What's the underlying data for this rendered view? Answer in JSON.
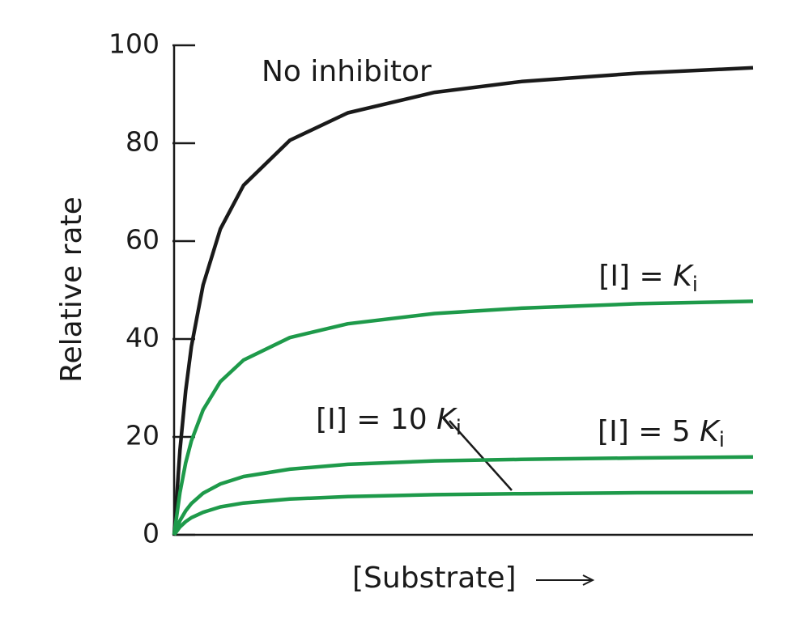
{
  "chart_data": {
    "type": "line",
    "ylabel": "Relative rate",
    "xlabel": "[Substrate]",
    "x": [
      0,
      1,
      2,
      3,
      5,
      8,
      12,
      20,
      30,
      45,
      60,
      80,
      100
    ],
    "xlim": [
      0,
      100
    ],
    "ylim": [
      0,
      100
    ],
    "yticks": [
      0,
      20,
      40,
      60,
      80,
      100
    ],
    "series": [
      {
        "color": "#1a1a1a",
        "label": {
          "prefix": "No inhibitor"
        },
        "values": [
          0,
          17.2,
          29.4,
          38.5,
          51.0,
          62.5,
          71.4,
          80.6,
          86.2,
          90.4,
          92.6,
          94.3,
          95.4
        ]
      },
      {
        "color": "#1e9a4a",
        "label": {
          "prefix": "[I] = ",
          "symbol": "K",
          "subscript": "i"
        },
        "values": [
          0,
          8.6,
          14.7,
          19.2,
          25.5,
          31.3,
          35.7,
          40.3,
          43.1,
          45.2,
          46.3,
          47.2,
          47.7
        ]
      },
      {
        "color": "#1e9a4a",
        "label": {
          "prefix": "[I] = 5 ",
          "symbol": "K",
          "subscript": "i"
        },
        "values": [
          0,
          2.9,
          4.9,
          6.4,
          8.5,
          10.4,
          11.9,
          13.4,
          14.4,
          15.1,
          15.4,
          15.7,
          15.9
        ]
      },
      {
        "color": "#1e9a4a",
        "label": {
          "prefix": "[I] = 10 ",
          "symbol": "K",
          "subscript": "i"
        },
        "values": [
          0,
          1.6,
          2.7,
          3.5,
          4.6,
          5.7,
          6.5,
          7.3,
          7.8,
          8.2,
          8.4,
          8.6,
          8.7
        ]
      }
    ]
  }
}
